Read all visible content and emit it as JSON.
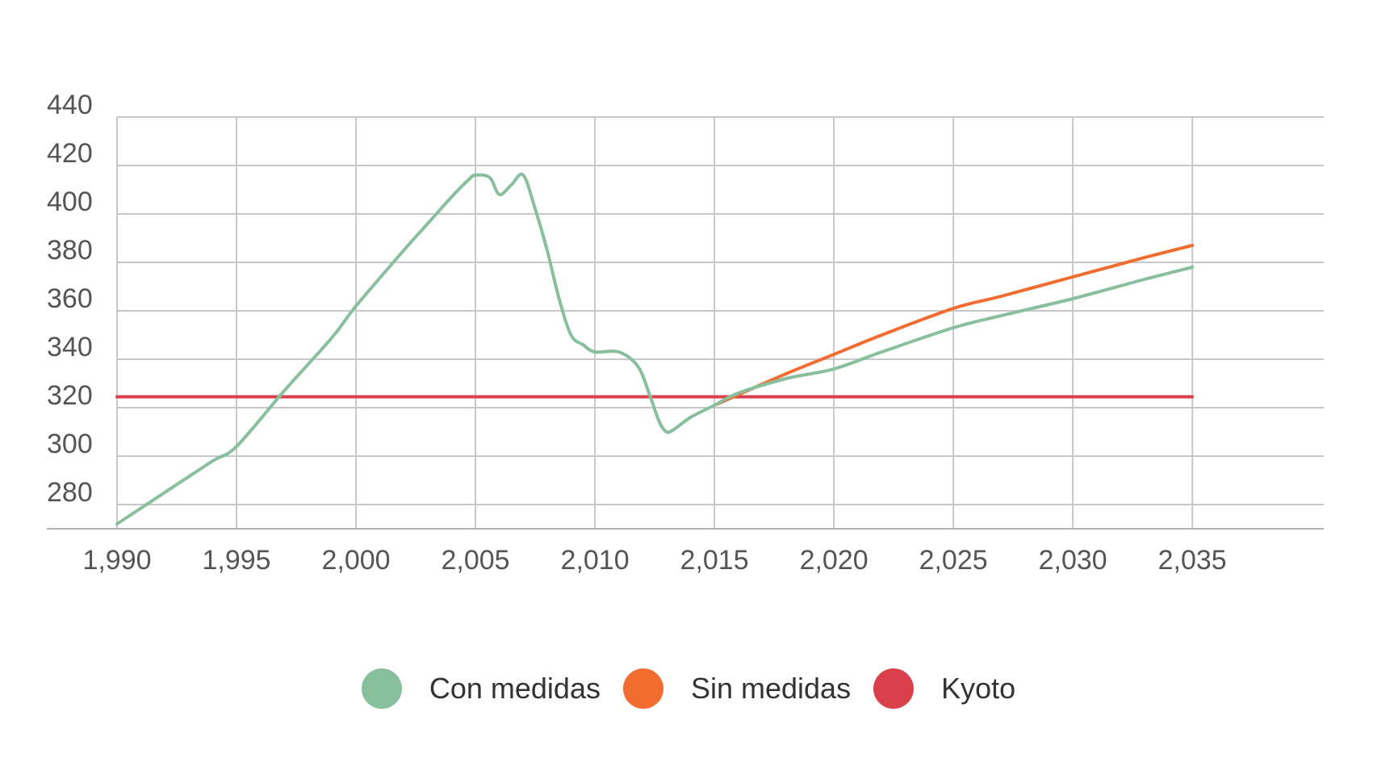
{
  "chart_data": {
    "type": "line",
    "title": "",
    "xlabel": "",
    "ylabel": "",
    "xlim": [
      1990,
      2040.5
    ],
    "ylim": [
      270,
      440
    ],
    "x_ticks": [
      1990,
      1995,
      2000,
      2005,
      2010,
      2015,
      2020,
      2025,
      2030,
      2035
    ],
    "x_tick_labels": [
      "1,990",
      "1,995",
      "2,000",
      "2,005",
      "2,010",
      "2,015",
      "2,020",
      "2,025",
      "2,030",
      "2,035"
    ],
    "y_ticks": [
      280,
      300,
      320,
      340,
      360,
      380,
      400,
      420,
      440
    ],
    "y_tick_labels": [
      "280",
      "300",
      "320",
      "340",
      "360",
      "380",
      "400",
      "420",
      "440"
    ],
    "grid": true,
    "legend_position": "bottom",
    "series": [
      {
        "name": "Con medidas",
        "color": "#88bf9c",
        "x": [
          1990,
          1992,
          1994,
          1995,
          1997,
          1999,
          2000,
          2002,
          2003,
          2004,
          2004.7,
          2005,
          2005.6,
          2006,
          2006.5,
          2007,
          2007.5,
          2008,
          2008.5,
          2009,
          2009.5,
          2010,
          2011,
          2011.8,
          2012.3,
          2012.7,
          2013,
          2013.3,
          2014,
          2015,
          2016,
          2018,
          2020,
          2022,
          2025,
          2027,
          2030,
          2033,
          2035
        ],
        "values": [
          272,
          285,
          298,
          304,
          327,
          349,
          362,
          385,
          396,
          407,
          414,
          416,
          415,
          408,
          412,
          416,
          402,
          385,
          365,
          350,
          346,
          343,
          343,
          337,
          325,
          314,
          310,
          311,
          316,
          321,
          326,
          332,
          336,
          343,
          353,
          358,
          365,
          373,
          378
        ]
      },
      {
        "name": "Sin medidas",
        "color": "#f26c2f",
        "x": [
          2015,
          2018,
          2020,
          2022,
          2025,
          2027,
          2030,
          2033,
          2035
        ],
        "values": [
          321,
          334,
          342,
          350,
          361,
          366,
          374,
          382,
          387
        ]
      },
      {
        "name": "Kyoto",
        "color": "#d9404b",
        "x": [
          1990,
          2035
        ],
        "values": [
          324.5,
          324.5
        ]
      }
    ]
  }
}
